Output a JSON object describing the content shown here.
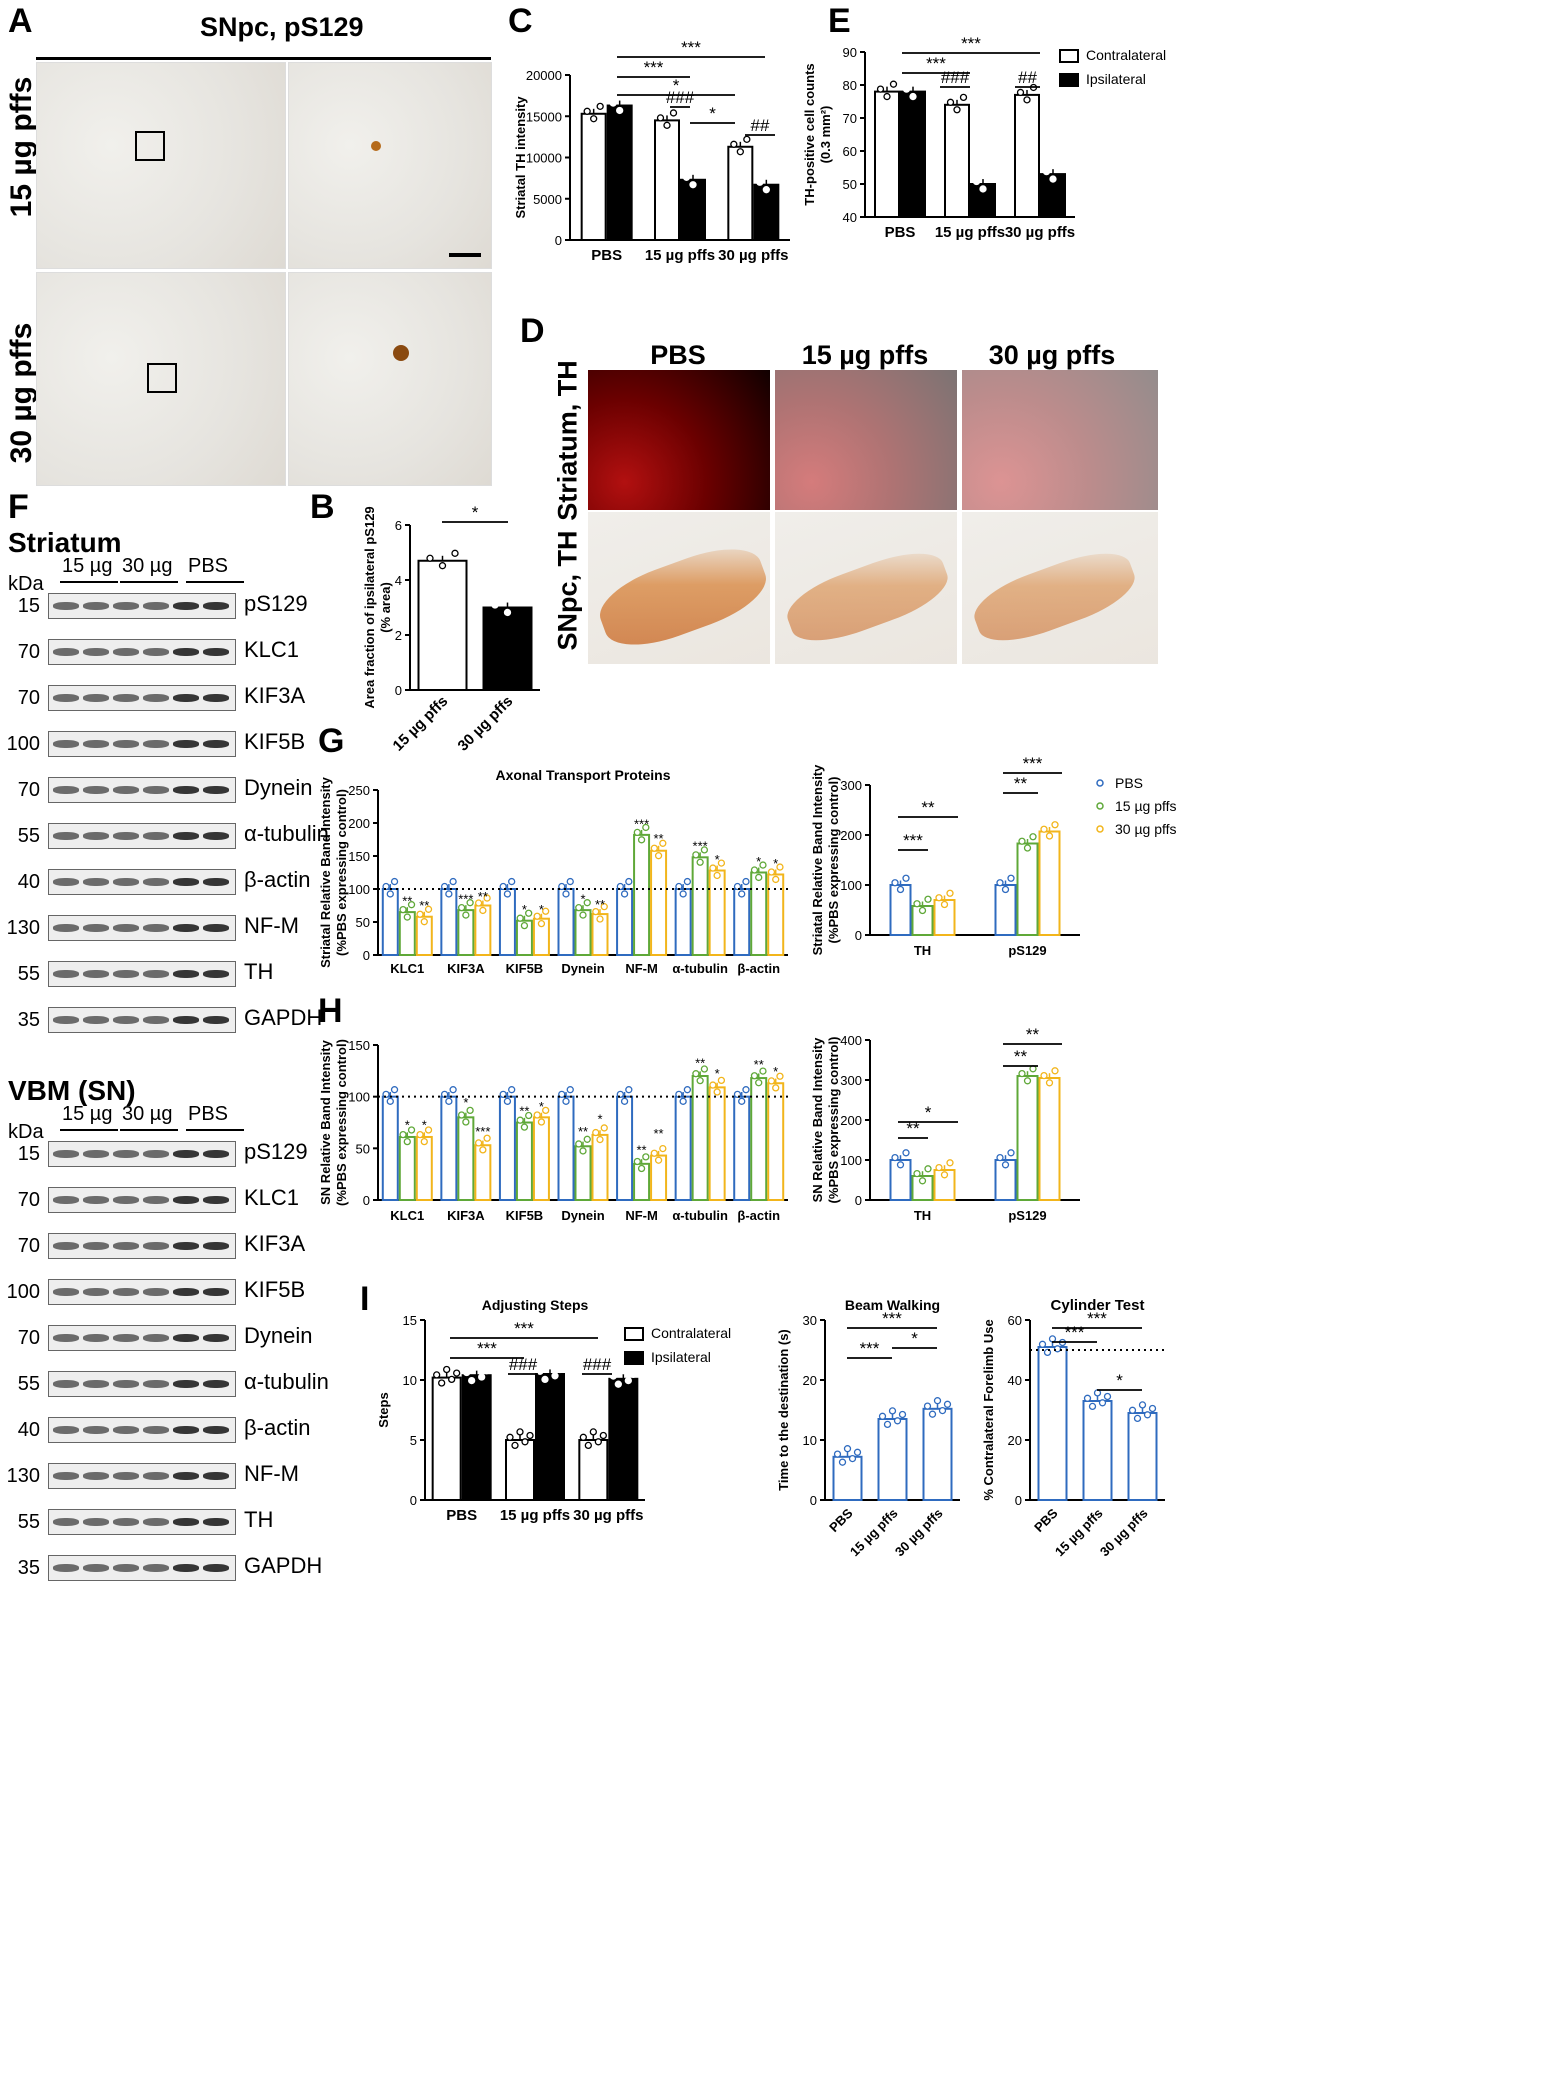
{
  "panels": {
    "A": "A",
    "B": "B",
    "C": "C",
    "D": "D",
    "E": "E",
    "F": "F",
    "G": "G",
    "H": "H",
    "I": "I"
  },
  "panel_a": {
    "title": "SNpc, pS129",
    "row1": "15 µg pffs",
    "row2": "30 µg pffs"
  },
  "panel_d": {
    "cols": [
      "PBS",
      "15 µg pffs",
      "30 µg pffs"
    ],
    "row1": "Striatum, TH",
    "row2": "SNpc, TH"
  },
  "panel_f": {
    "striatum_title": "Striatum",
    "vbm_title": "VBM (SN)",
    "kda": "kDa",
    "lanes": [
      "15 µg",
      "30 µg",
      "PBS"
    ],
    "striatum_blots": [
      {
        "label": "pS129",
        "kda": "15"
      },
      {
        "label": "KLC1",
        "kda": "70"
      },
      {
        "label": "KIF3A",
        "kda": "70"
      },
      {
        "label": "KIF5B",
        "kda": "100"
      },
      {
        "label": "Dynein",
        "kda": "70"
      },
      {
        "label": "α-tubulin",
        "kda": "55"
      },
      {
        "label": "β-actin",
        "kda": "40"
      },
      {
        "label": "NF-M",
        "kda": "130"
      },
      {
        "label": "TH",
        "kda": "55"
      },
      {
        "label": "GAPDH",
        "kda": "35"
      }
    ],
    "vbm_blots": [
      {
        "label": "pS129",
        "kda": "15"
      },
      {
        "label": "KLC1",
        "kda": "70"
      },
      {
        "label": "KIF3A",
        "kda": "70"
      },
      {
        "label": "KIF5B",
        "kda": "100"
      },
      {
        "label": "Dynein",
        "kda": "70"
      },
      {
        "label": "α-tubulin",
        "kda": "55"
      },
      {
        "label": "β-actin",
        "kda": "40"
      },
      {
        "label": "NF-M",
        "kda": "130"
      },
      {
        "label": "TH",
        "kda": "55"
      },
      {
        "label": "GAPDH",
        "kda": "35"
      }
    ]
  },
  "chart_data": [
    {
      "id": "B",
      "type": "bar",
      "categories": [
        "15 µg pffs",
        "30 µg pffs"
      ],
      "values": [
        4.7,
        3.0
      ],
      "ylabel": "Area fraction of ipsilateral pS129\n(% area)",
      "ylim": [
        0,
        6
      ],
      "yticks": [
        0,
        2,
        4,
        6
      ],
      "annotations": [
        "*"
      ]
    },
    {
      "id": "C",
      "type": "bar",
      "categories": [
        "PBS",
        "15 µg pffs",
        "30 µg pffs"
      ],
      "series": [
        {
          "name": "Contralateral",
          "values": [
            15300,
            14500,
            11300
          ]
        },
        {
          "name": "Ipsilateral",
          "values": [
            16300,
            7300,
            6700
          ]
        }
      ],
      "ylabel": "Striatal TH intensity",
      "ylim": [
        0,
        20000
      ],
      "yticks": [
        0,
        5000,
        10000,
        15000,
        20000
      ],
      "annotations": [
        "***",
        "***",
        "*",
        "###",
        "*",
        "##"
      ]
    },
    {
      "id": "E",
      "type": "bar",
      "categories": [
        "PBS",
        "15 µg pffs",
        "30 µg pffs"
      ],
      "series": [
        {
          "name": "Contralateral",
          "values": [
            78,
            74,
            77
          ]
        },
        {
          "name": "Ipsilateral",
          "values": [
            78,
            50,
            53
          ]
        }
      ],
      "ylabel": "TH-positive cell counts\n(0.3 mm²)",
      "ylim": [
        40,
        90
      ],
      "yticks": [
        40,
        50,
        60,
        70,
        80,
        90
      ],
      "legend": [
        "Contralateral",
        "Ipsilateral"
      ],
      "annotations": [
        "***",
        "***",
        "###",
        "##"
      ]
    },
    {
      "id": "G1",
      "type": "bar",
      "title": "Axonal Transport Proteins",
      "categories": [
        "KLC1",
        "KIF3A",
        "KIF5B",
        "Dynein",
        "NF-M",
        "α-tubulin",
        "β-actin"
      ],
      "series": [
        {
          "name": "PBS",
          "values": [
            100,
            100,
            100,
            100,
            100,
            100,
            100
          ]
        },
        {
          "name": "15 µg pffs",
          "values": [
            65,
            68,
            52,
            68,
            182,
            148,
            125
          ]
        },
        {
          "name": "30 µg pffs",
          "values": [
            58,
            75,
            55,
            62,
            158,
            128,
            122
          ]
        }
      ],
      "ylabel": "Striatal Relative Band Intensity\n(%PBS expressing control)",
      "ylim": [
        0,
        250
      ],
      "yticks": [
        0,
        50,
        100,
        150,
        200,
        250
      ],
      "annotations": [
        "**",
        "**",
        "***",
        "**",
        "*",
        "*",
        "*",
        "**",
        "***",
        "**",
        "***",
        "*",
        "*",
        "*"
      ]
    },
    {
      "id": "G2",
      "type": "bar",
      "categories": [
        "TH",
        "pS129"
      ],
      "series": [
        {
          "name": "PBS",
          "values": [
            100,
            100
          ]
        },
        {
          "name": "15 µg pffs",
          "values": [
            58,
            183
          ]
        },
        {
          "name": "30 µg pffs",
          "values": [
            70,
            207
          ]
        }
      ],
      "ylabel": "Striatal Relative Band Intensity\n(%PBS expressing control)",
      "ylim": [
        0,
        300
      ],
      "yticks": [
        0,
        100,
        200,
        300
      ],
      "legend": [
        "PBS",
        "15 µg pffs",
        "30 µg pffs"
      ],
      "annotations": [
        "**",
        "***",
        "**",
        "***"
      ]
    },
    {
      "id": "H1",
      "type": "bar",
      "categories": [
        "KLC1",
        "KIF3A",
        "KIF5B",
        "Dynein",
        "NF-M",
        "α-tubulin",
        "β-actin"
      ],
      "series": [
        {
          "name": "PBS",
          "values": [
            100,
            100,
            100,
            100,
            100,
            100,
            100
          ]
        },
        {
          "name": "15 µg pffs",
          "values": [
            61,
            80,
            75,
            52,
            35,
            120,
            118
          ]
        },
        {
          "name": "30 µg pffs",
          "values": [
            61,
            53,
            80,
            63,
            43,
            109,
            113
          ]
        }
      ],
      "ylabel": "SN Relative Band Intensity\n(%PBS expressing control)",
      "ylim": [
        0,
        150
      ],
      "yticks": [
        0,
        50,
        100,
        150
      ],
      "annotations": [
        "*",
        "*",
        "*",
        "***",
        "**",
        "*",
        "**",
        "*",
        "**",
        "**",
        "**",
        "*",
        "**",
        "*"
      ]
    },
    {
      "id": "H2",
      "type": "bar",
      "categories": [
        "TH",
        "pS129"
      ],
      "series": [
        {
          "name": "PBS",
          "values": [
            100,
            100
          ]
        },
        {
          "name": "15 µg pffs",
          "values": [
            60,
            310
          ]
        },
        {
          "name": "30 µg pffs",
          "values": [
            75,
            305
          ]
        }
      ],
      "ylabel": "SN Relative Band Intensity\n(%PBS expressing control)",
      "ylim": [
        0,
        400
      ],
      "yticks": [
        0,
        100,
        200,
        300,
        400
      ],
      "annotations": [
        "**",
        "*",
        "**",
        "**"
      ]
    },
    {
      "id": "I1",
      "type": "bar",
      "title": "Adjusting Steps",
      "categories": [
        "PBS",
        "15 µg pffs",
        "30 µg pffs"
      ],
      "series": [
        {
          "name": "Contralateral",
          "values": [
            10.2,
            5.0,
            5.0
          ]
        },
        {
          "name": "Ipsilateral",
          "values": [
            10.4,
            10.5,
            10.1
          ]
        }
      ],
      "ylabel": "Steps",
      "ylim": [
        0,
        15
      ],
      "yticks": [
        0,
        5,
        10,
        15
      ],
      "legend": [
        "Contralateral",
        "Ipsilateral"
      ],
      "annotations": [
        "***",
        "***",
        "###",
        "###"
      ]
    },
    {
      "id": "I2",
      "type": "bar",
      "title": "Beam Walking",
      "categories": [
        "PBS",
        "15 µg pffs",
        "30 µg pffs"
      ],
      "values": [
        7.2,
        13.5,
        15.2
      ],
      "ylabel": "Time to the destination (s)",
      "ylim": [
        0,
        30
      ],
      "yticks": [
        0,
        10,
        20,
        30
      ],
      "annotations": [
        "***",
        "***",
        "*"
      ]
    },
    {
      "id": "I3",
      "type": "bar",
      "title": "Cylinder Test",
      "categories": [
        "PBS",
        "15 µg pffs",
        "30 µg pffs"
      ],
      "values": [
        51,
        33,
        29
      ],
      "ylabel": "% Contralateral Forelimb Use",
      "ylim": [
        0,
        60
      ],
      "yticks": [
        0,
        20,
        40,
        60
      ],
      "annotations": [
        "***",
        "***",
        "*"
      ]
    }
  ],
  "colors": {
    "pbs": "#2f6bbf",
    "g15": "#5fa838",
    "g30": "#f2b51b",
    "black": "#000000"
  }
}
